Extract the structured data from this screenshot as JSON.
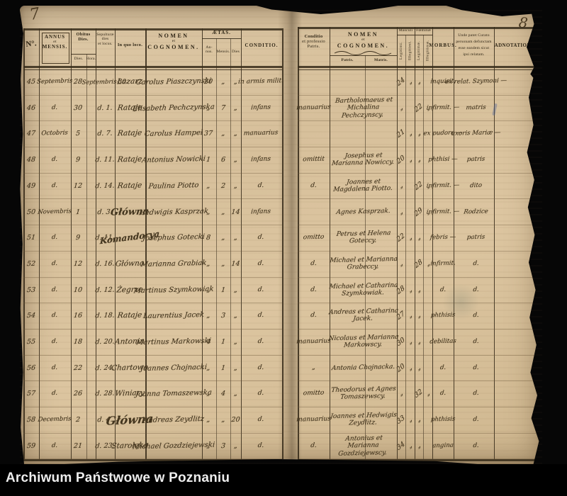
{
  "scan": {
    "folio_left": "7",
    "folio_right": "8"
  },
  "footer": {
    "archive_name": "Archiwum Państwowe w Poznaniu"
  },
  "left_page": {
    "headers": {
      "no": "N°.",
      "annus1": "ANNUS",
      "annus2": "et",
      "annus3": "MENSIS.",
      "obitus1": "Obitus",
      "obitus2": "Dies.",
      "obitus_dies": "Dies.",
      "obitus_hora": "Hora.",
      "sep1": "Sepulturæ",
      "sep2": "dies",
      "sep3": "et locus.",
      "inquoloco": "In quo loco.",
      "nomen1": "NOMEN",
      "nomen2": "et",
      "nomen3": "COGNOMEN.",
      "aetas": "ÆTAS.",
      "aetas_an": "An- nus.",
      "aetas_mensis": "Mensis.",
      "aetas_dies": "Dies",
      "conditio": "CONDITIO."
    },
    "rows": [
      {
        "no": "45",
        "month": "Septembris",
        "dies": "28",
        "hora": "",
        "sepult": "Septembris 30.",
        "locus": "Łazarz",
        "name": "Carolus Piaszczynski",
        "an": "20",
        "mensis": "„",
        "diesa": "„",
        "conditio": "in armis milit."
      },
      {
        "no": "46",
        "month": "d.",
        "dies": "30",
        "hora": "",
        "sepult": "d. 1.",
        "locus": "Rataje",
        "name": "Elisabeth Pechczynska",
        "an": "„",
        "mensis": "7",
        "diesa": "„",
        "conditio": "infans"
      },
      {
        "no": "47",
        "month": "Octobris",
        "dies": "5",
        "hora": "",
        "sepult": "d. 7.",
        "locus": "Rataje",
        "name": "Carolus Hampel",
        "an": "37",
        "mensis": "„",
        "diesa": "„",
        "conditio": "manuarius"
      },
      {
        "no": "48",
        "month": "d.",
        "dies": "9",
        "hora": "",
        "sepult": "d. 11.",
        "locus": "Rataje",
        "name": "Antonius Nowicki",
        "an": "1",
        "mensis": "6",
        "diesa": "„",
        "conditio": "infans"
      },
      {
        "no": "49",
        "month": "d.",
        "dies": "12",
        "hora": "",
        "sepult": "d. 14.",
        "locus": "Rataje",
        "name": "Paulina Piotto",
        "an": "„",
        "mensis": "2",
        "diesa": "„",
        "conditio": "d."
      },
      {
        "no": "50",
        "month": "Novembris",
        "dies": "1",
        "hora": "",
        "sepult": "d. 3.",
        "locus": "Główna",
        "name": "Hedwigis Kasprzak",
        "an": "„",
        "mensis": "„",
        "diesa": "14",
        "conditio": "infans"
      },
      {
        "no": "51",
        "month": "d.",
        "dies": "9",
        "hora": "",
        "sepult": "d. 11.",
        "locus": "Komandorya",
        "name": "Josephus Gotecki",
        "an": "8",
        "mensis": "„",
        "diesa": "„",
        "conditio": "d."
      },
      {
        "no": "52",
        "month": "d.",
        "dies": "12",
        "hora": "",
        "sepult": "d. 16.",
        "locus": "Główna",
        "name": "Marianna Grabiak",
        "an": "„",
        "mensis": "„",
        "diesa": "14",
        "conditio": "d."
      },
      {
        "no": "53",
        "month": "d.",
        "dies": "10",
        "hora": "",
        "sepult": "d. 12.",
        "locus": "Żegrze",
        "name": "Martinus Szymkowiak",
        "an": "„",
        "mensis": "1",
        "diesa": "„",
        "conditio": "d."
      },
      {
        "no": "54",
        "month": "d.",
        "dies": "16",
        "hora": "",
        "sepult": "d. 18.",
        "locus": "Rataje",
        "name": "Laurentius Jacek",
        "an": "„",
        "mensis": "3",
        "diesa": "„",
        "conditio": "d."
      },
      {
        "no": "55",
        "month": "d.",
        "dies": "18",
        "hora": "",
        "sepult": "d. 20.",
        "locus": "Antonin",
        "name": "Martinus Markowski",
        "an": "4",
        "mensis": "1",
        "diesa": "„",
        "conditio": "d."
      },
      {
        "no": "56",
        "month": "d.",
        "dies": "22",
        "hora": "",
        "sepult": "d. 24.",
        "locus": "Chartowo",
        "name": "Joannes Chojnacki",
        "an": "„",
        "mensis": "1",
        "diesa": "„",
        "conditio": "d."
      },
      {
        "no": "57",
        "month": "d.",
        "dies": "26",
        "hora": "",
        "sepult": "d. 28.",
        "locus": "Winiary",
        "name": "Joanna Tomaszewska",
        "an": "„",
        "mensis": "4",
        "diesa": "„",
        "conditio": "d."
      },
      {
        "no": "58",
        "month": "Decembris",
        "dies": "2",
        "hora": "",
        "sepult": "d. 4.",
        "locus": "Główna",
        "name": "Andreas Zeydlitz",
        "an": "„",
        "mensis": "„",
        "diesa": "20",
        "conditio": "d."
      },
      {
        "no": "59",
        "month": "d.",
        "dies": "21",
        "hora": "",
        "sepult": "d. 23.",
        "locus": "Starołęka",
        "name": "Michael Gozdziejewski",
        "an": "„",
        "mensis": "3",
        "diesa": "„",
        "conditio": "d."
      }
    ]
  },
  "right_page": {
    "headers": {
      "cp1": "Conditio",
      "cp2": "et professio",
      "cp3": "Patris.",
      "nomen1": "NOMEN",
      "nomen2": "et",
      "nomen3": "COGNOMEN.",
      "patris": "Patris.",
      "matris": "Matris.",
      "masculi": "Masculi",
      "feminae": "Fœminæ",
      "leg_m": "Legitimi.",
      "illeg_m": "Illegitimi.",
      "leg_f": "Legitimæ.",
      "illeg_f": "Illegitimæ.",
      "morbus": "MORBUS.",
      "unde": "Unde patet Curato personam defunctam esse eandem sicut ipsi relatam.",
      "adnot": "ADNOTATIONES."
    },
    "rows": [
      {
        "conditio": "",
        "parents": "",
        "lm": "24",
        "im": "„",
        "lf": "„",
        "lif": "",
        "morbus": "inquisit.",
        "unde": "ex relat. Szymoni —",
        "adnot": ""
      },
      {
        "conditio": "manuarius",
        "parents": "Bartholomaeus et Michalina Pechczynscy.",
        "lm": "„",
        "im": "",
        "lf": "22",
        "lif": "„",
        "morbus": "infirmit. —",
        "unde": "matris",
        "adnot": ""
      },
      {
        "conditio": "",
        "parents": "",
        "lm": "21",
        "im": "„",
        "lf": "„",
        "lif": "",
        "morbus": "ex pudore —",
        "unde": "uxoris Mariæ —",
        "adnot": ""
      },
      {
        "conditio": "omittit",
        "parents": "Josephus et Marianna Nowiccy.",
        "lm": "20",
        "im": "„",
        "lf": "„",
        "lif": "",
        "morbus": "phthisi —",
        "unde": "patris",
        "adnot": ""
      },
      {
        "conditio": "d.",
        "parents": "Joannes et Magdalena Piotto.",
        "lm": "„",
        "im": "",
        "lf": "22",
        "lif": "„",
        "morbus": "infirmit. —",
        "unde": "dito",
        "adnot": ""
      },
      {
        "conditio": "",
        "parents": "Agnes Kasprzak.",
        "lm": "„",
        "im": "",
        "lf": "29",
        "lif": "„",
        "morbus": "infirmit. —",
        "unde": "Rodzice",
        "adnot": ""
      },
      {
        "conditio": "omitto",
        "parents": "Petrus et Helena Goteccy.",
        "lm": "22",
        "im": "„",
        "lf": "„",
        "lif": "",
        "morbus": "febris —",
        "unde": "patris",
        "adnot": ""
      },
      {
        "conditio": "d.",
        "parents": "Michael et Marianna Grabeccy.",
        "lm": "„",
        "im": "",
        "lf": "28",
        "lif": "„",
        "morbus": "infirmit.",
        "unde": "d.",
        "adnot": ""
      },
      {
        "conditio": "d.",
        "parents": "Michael et Catharina Szymkowiak.",
        "lm": "28",
        "im": "„",
        "lf": "„",
        "lif": "",
        "morbus": "d.",
        "unde": "d.",
        "adnot": ""
      },
      {
        "conditio": "d.",
        "parents": "Andreas et Catharina Jacek.",
        "lm": "27",
        "im": "„",
        "lf": "„",
        "lif": "",
        "morbus": "phthisis",
        "unde": "d.",
        "adnot": ""
      },
      {
        "conditio": "manuarius",
        "parents": "Nicolaus et Marianna Markowscy.",
        "lm": "30",
        "im": "„",
        "lf": "„",
        "lif": "",
        "morbus": "debilitas",
        "unde": "d.",
        "adnot": ""
      },
      {
        "conditio": "„",
        "parents": "Antonia Chojnacka.",
        "lm": "20",
        "im": "„",
        "lf": "„",
        "lif": "",
        "morbus": "d.",
        "unde": "d.",
        "adnot": ""
      },
      {
        "conditio": "omitto",
        "parents": "Theodorus et Agnes Tomaszewscy.",
        "lm": "„",
        "im": "",
        "lf": "32",
        "lif": "„",
        "morbus": "d.",
        "unde": "d.",
        "adnot": ""
      },
      {
        "conditio": "manuarius",
        "parents": "Joannes et Hedwigis Zeydlitz.",
        "lm": "33",
        "im": "„",
        "lf": "„",
        "lif": "",
        "morbus": "phthisis",
        "unde": "d.",
        "adnot": ""
      },
      {
        "conditio": "d.",
        "parents": "Antonius et Marianna Gozdziejewscy.",
        "lm": "34",
        "im": "„",
        "lf": "„",
        "lif": "",
        "morbus": "angina",
        "unde": "d.",
        "adnot": ""
      }
    ]
  }
}
